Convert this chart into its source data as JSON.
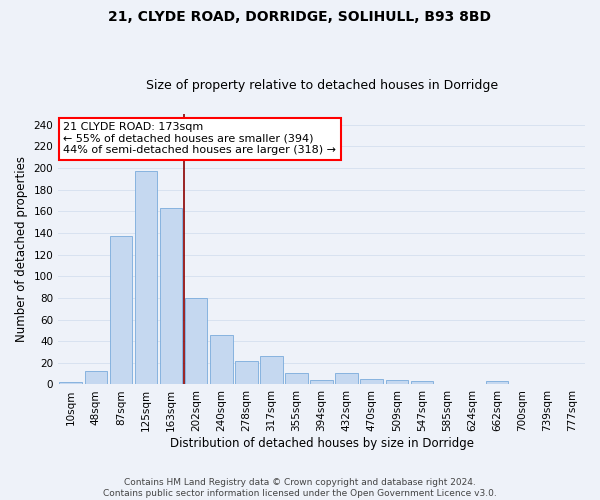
{
  "title1": "21, CLYDE ROAD, DORRIDGE, SOLIHULL, B93 8BD",
  "title2": "Size of property relative to detached houses in Dorridge",
  "xlabel": "Distribution of detached houses by size in Dorridge",
  "ylabel": "Number of detached properties",
  "bar_labels": [
    "10sqm",
    "48sqm",
    "87sqm",
    "125sqm",
    "163sqm",
    "202sqm",
    "240sqm",
    "278sqm",
    "317sqm",
    "355sqm",
    "394sqm",
    "432sqm",
    "470sqm",
    "509sqm",
    "547sqm",
    "585sqm",
    "624sqm",
    "662sqm",
    "700sqm",
    "739sqm",
    "777sqm"
  ],
  "bar_values": [
    2,
    12,
    137,
    197,
    163,
    80,
    46,
    22,
    26,
    11,
    4,
    11,
    5,
    4,
    3,
    0,
    0,
    3,
    0,
    0,
    0
  ],
  "bar_color": "#c5d8f0",
  "bar_edgecolor": "#7aabdc",
  "red_line_x": 4,
  "annotation_line1": "21 CLYDE ROAD: 173sqm",
  "annotation_line2": "← 55% of detached houses are smaller (394)",
  "annotation_line3": "44% of semi-detached houses are larger (318) →",
  "annotation_box_color": "white",
  "annotation_box_edgecolor": "red",
  "ylim": [
    0,
    250
  ],
  "yticks": [
    0,
    20,
    40,
    60,
    80,
    100,
    120,
    140,
    160,
    180,
    200,
    220,
    240
  ],
  "footer_line1": "Contains HM Land Registry data © Crown copyright and database right 2024.",
  "footer_line2": "Contains public sector information licensed under the Open Government Licence v3.0.",
  "background_color": "#eef2f9",
  "grid_color": "#d8e2f0",
  "title1_fontsize": 10,
  "title2_fontsize": 9,
  "axis_label_fontsize": 8.5,
  "tick_fontsize": 7.5,
  "annotation_fontsize": 8,
  "footer_fontsize": 6.5
}
